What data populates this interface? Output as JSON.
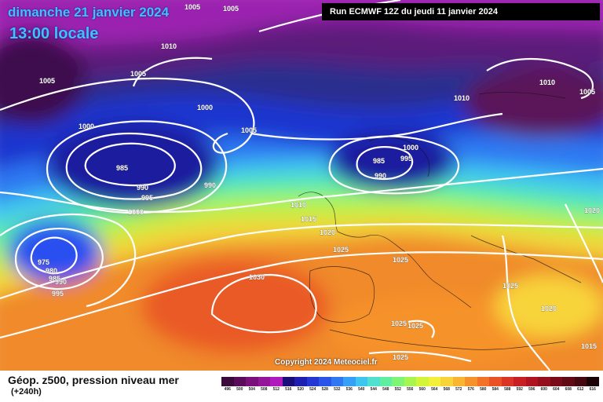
{
  "header": {
    "date": "dimanche 21 janvier 2024",
    "local_time": "13:00 locale",
    "run_info": "Run ECMWF 12Z du jeudi 11 janvier 2024"
  },
  "map": {
    "copyright": "Copyright 2024 Meteociel.fr",
    "isobar_labels": [
      "1005",
      "1005",
      "1010",
      "1005",
      "1005",
      "1000",
      "1005",
      "1000",
      "985",
      "990",
      "995",
      "990",
      "1000",
      "975",
      "980",
      "985",
      "990",
      "995",
      "985",
      "990",
      "995",
      "1000",
      "1010",
      "1015",
      "1020",
      "1025",
      "1030",
      "1025",
      "1025",
      "1025",
      "1025",
      "1025",
      "1020",
      "1015",
      "1010",
      "1005",
      "1020",
      "1010"
    ]
  },
  "footer": {
    "parameter": "Géop. z500, pression niveau mer",
    "lead_time": "(+240h)"
  },
  "legend": {
    "values": [
      "496",
      "500",
      "504",
      "508",
      "512",
      "516",
      "520",
      "524",
      "528",
      "532",
      "536",
      "540",
      "544",
      "548",
      "552",
      "556",
      "560",
      "564",
      "568",
      "572",
      "576",
      "580",
      "584",
      "588",
      "592",
      "596",
      "600",
      "604",
      "608",
      "612",
      "616"
    ],
    "colors": [
      "#3a0a3a",
      "#5a0c5a",
      "#7a107a",
      "#95159a",
      "#b01bbd",
      "#1a0f7a",
      "#1f1fb0",
      "#2436d4",
      "#2b55e8",
      "#2f78f2",
      "#35a0f5",
      "#3fc6ef",
      "#4fe0d0",
      "#5fefa3",
      "#7ff575",
      "#a8f54f",
      "#d2f53a",
      "#f2f03a",
      "#f8d43a",
      "#f8b432",
      "#f6922c",
      "#f27228",
      "#ea5226",
      "#dc3424",
      "#c81f22",
      "#b01420",
      "#94101e",
      "#7a0c1a",
      "#600a16",
      "#460810",
      "#1a0306"
    ]
  }
}
